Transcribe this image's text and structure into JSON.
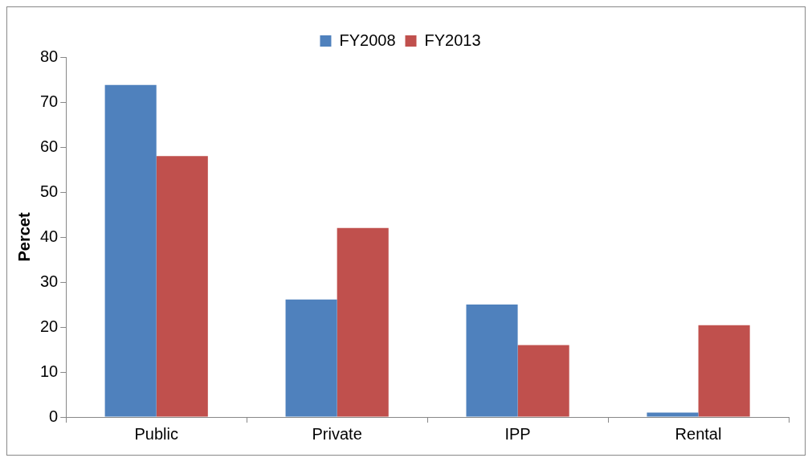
{
  "chart_data": {
    "type": "bar",
    "ylabel": "Percet",
    "categories": [
      "Public",
      "Private",
      "IPP",
      "Rental"
    ],
    "series": [
      {
        "name": "FY2008",
        "color": "#4f81bd",
        "values": [
          73.8,
          26.1,
          25.0,
          1.0
        ]
      },
      {
        "name": "FY2013",
        "color": "#c0504d",
        "values": [
          58.0,
          42.0,
          16.0,
          20.4
        ]
      }
    ],
    "ylim": [
      0,
      80
    ],
    "yticks": [
      0,
      10,
      20,
      30,
      40,
      50,
      60,
      70,
      80
    ],
    "grid": false,
    "legend": "top"
  }
}
